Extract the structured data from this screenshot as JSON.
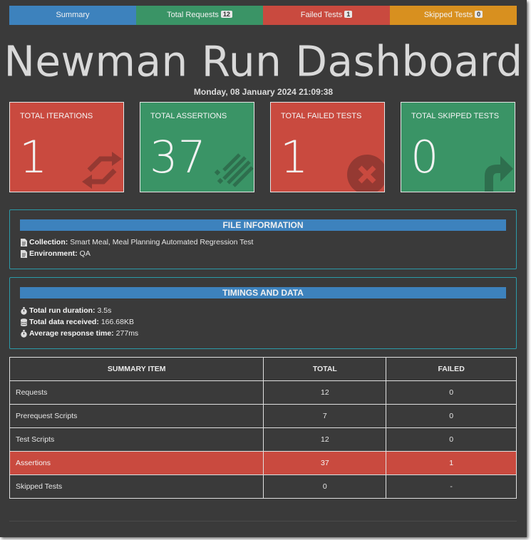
{
  "tabs": [
    {
      "label": "Summary",
      "badge": "",
      "color": "#3d82bd"
    },
    {
      "label": "Total Requests",
      "badge": "12",
      "color": "#3a9466"
    },
    {
      "label": "Failed Tests",
      "badge": "1",
      "color": "#c94a3f"
    },
    {
      "label": "Skipped Tests",
      "badge": "0",
      "color": "#d8901f"
    }
  ],
  "title": "Newman Run Dashboard",
  "run_date": "Monday, 08 January 2024 21:09:38",
  "cards": [
    {
      "title": "TOTAL ITERATIONS",
      "value": "1",
      "icon": "refresh-icon",
      "color": "#c94a3f"
    },
    {
      "title": "TOTAL ASSERTIONS",
      "value": "37",
      "icon": "tasks-icon",
      "color": "#3a9466"
    },
    {
      "title": "TOTAL FAILED TESTS",
      "value": "1",
      "icon": "times-circle-icon",
      "color": "#c94a3f"
    },
    {
      "title": "TOTAL SKIPPED TESTS",
      "value": "0",
      "icon": "share-arrow-icon",
      "color": "#3a9466"
    }
  ],
  "file_info": {
    "heading": "FILE INFORMATION",
    "collection_label": "Collection:",
    "collection_value": "Smart Meal, Meal Planning Automated Regression Test",
    "environment_label": "Environment:",
    "environment_value": "QA"
  },
  "timings": {
    "heading": "TIMINGS AND DATA",
    "duration_label": "Total run duration:",
    "duration_value": "3.5s",
    "data_label": "Total data received:",
    "data_value": "166.68KB",
    "response_label": "Average response time:",
    "response_value": "277ms"
  },
  "summary_table": {
    "headers": [
      "SUMMARY ITEM",
      "TOTAL",
      "FAILED"
    ],
    "rows": [
      {
        "item": "Requests",
        "total": "12",
        "failed": "0"
      },
      {
        "item": "Prerequest Scripts",
        "total": "7",
        "failed": "0"
      },
      {
        "item": "Test Scripts",
        "total": "12",
        "failed": "0"
      },
      {
        "item": "Assertions",
        "total": "37",
        "failed": "1"
      },
      {
        "item": "Skipped Tests",
        "total": "0",
        "failed": "-"
      }
    ]
  }
}
